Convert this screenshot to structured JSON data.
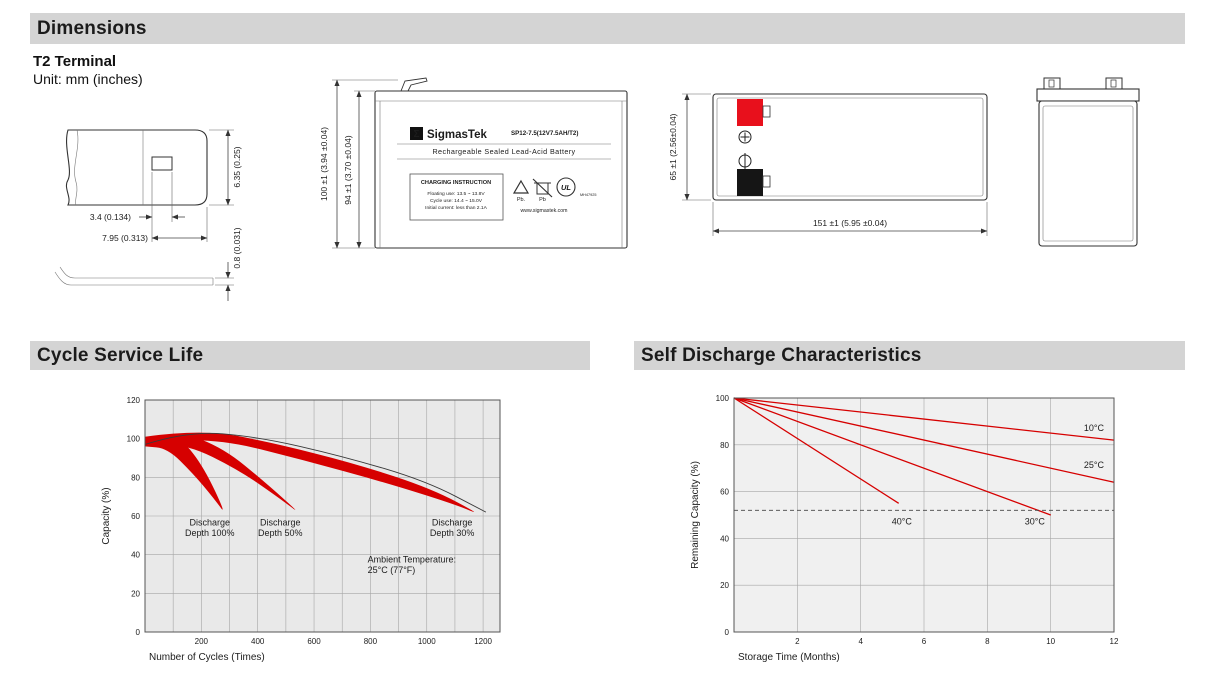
{
  "page": {
    "dimensions_header": "Dimensions",
    "terminal_type": "T2 Terminal",
    "unit_note": "Unit: mm (inches)",
    "cycle_section_title": "Cycle Service Life",
    "self_discharge_section_title": "Self Discharge Characteristics"
  },
  "terminal_drawing": {
    "dim_hole_width": "3.4 (0.134)",
    "dim_hole_offset": "7.95 (0.313)",
    "dim_tab_width": "6.35 (0.25)",
    "dim_thickness": "0.8 (0.031)"
  },
  "front_view": {
    "dim_height_total": "100 ±1 (3.94 ±0.04)",
    "dim_height_body": "94 ±1 (3.70 ±0.04)",
    "brand_sigma": "Σ",
    "brand_name": "SigmasTek",
    "model": "SP12-7.5(12V7.5AH/T2)",
    "battery_type": "Rechargeable Sealed Lead-Acid Battery",
    "charging_title": "CHARGING INSTRUCTION",
    "charging_line1": "Floating use: 13.5 ~ 13.8V",
    "charging_line2": "Cycle use: 14.4 ~ 15.0V",
    "charging_line3": "Initial current: less than 2.1A",
    "recycle_label": "Pb.",
    "bin_label": "Pb",
    "ul_mark": "UL",
    "ul_file": "MH47925",
    "website": "www.sigmastek.com"
  },
  "side_view": {
    "dim_height": "65 ±1 (2.56±0.04)",
    "dim_length": "151 ±1 (5.95 ±0.04)"
  },
  "colors": {
    "accent_red": "#d60000",
    "terminal_red": "#e8101c",
    "terminal_black": "#151515",
    "section_header_bg": "#d4d4d4"
  },
  "chart_data": [
    {
      "id": "chart-cycle-life",
      "type": "area",
      "title": "Cycle Service Life",
      "xlabel": "Number of Cycles (Times)",
      "ylabel": "Capacity (%)",
      "xlim": [
        0,
        1260
      ],
      "ylim": [
        0,
        120
      ],
      "xticks": [
        200,
        400,
        600,
        800,
        1000,
        1200
      ],
      "yticks": [
        0,
        20,
        40,
        60,
        80,
        100,
        120
      ],
      "xgrid_step": 100,
      "ygrid_step": 20,
      "plot_bg": "#e9e9e9",
      "grid_color": "#a6a6a6",
      "border_color": "#555555",
      "legend": "none",
      "grid": true,
      "margins": {
        "l": 50,
        "r": 15,
        "t": 12,
        "b": 48
      },
      "bands": [
        {
          "name": "band-discharge-depth-100",
          "fill": "#d60000",
          "upper": [
            [
              0,
              99
            ],
            [
              60,
              103
            ],
            [
              130,
              100
            ],
            [
              210,
              85
            ],
            [
              290,
              60
            ]
          ],
          "lower": [
            [
              0,
              96
            ],
            [
              80,
              95
            ],
            [
              170,
              82
            ],
            [
              245,
              69
            ],
            [
              290,
              60
            ]
          ]
        },
        {
          "name": "band-discharge-depth-50",
          "fill": "#d60000",
          "upper": [
            [
              0,
              100
            ],
            [
              120,
              104
            ],
            [
              280,
              95
            ],
            [
              430,
              77
            ],
            [
              560,
              60
            ]
          ],
          "lower": [
            [
              0,
              97
            ],
            [
              150,
              97
            ],
            [
              330,
              84
            ],
            [
              470,
              70
            ],
            [
              560,
              60
            ]
          ]
        },
        {
          "name": "band-discharge-depth-30",
          "fill": "#d60000",
          "upper": [
            [
              0,
              101
            ],
            [
              200,
              105
            ],
            [
              450,
              98
            ],
            [
              750,
              87
            ],
            [
              1020,
              74
            ],
            [
              1200,
              60
            ]
          ],
          "lower": [
            [
              0,
              98
            ],
            [
              260,
              100
            ],
            [
              560,
              89
            ],
            [
              860,
              77
            ],
            [
              1100,
              66
            ],
            [
              1200,
              60
            ]
          ]
        }
      ],
      "lines": [
        {
          "name": "envelope-curve",
          "color": "#3a3a3a",
          "width": 0.9,
          "points": [
            [
              0,
              97
            ],
            [
              150,
              104
            ],
            [
              400,
              101
            ],
            [
              700,
              91
            ],
            [
              1000,
              78
            ],
            [
              1210,
              62
            ]
          ]
        }
      ],
      "annotations": [
        {
          "x": 230,
          "y": 55,
          "anchor": "middle",
          "lines": [
            "Discharge",
            "Depth 100%"
          ]
        },
        {
          "x": 480,
          "y": 55,
          "anchor": "middle",
          "lines": [
            "Discharge",
            "Depth 50%"
          ]
        },
        {
          "x": 1090,
          "y": 55,
          "anchor": "middle",
          "lines": [
            "Discharge",
            "Depth 30%"
          ]
        },
        {
          "x": 790,
          "y": 36,
          "anchor": "start",
          "lines": [
            "Ambient Temperature:",
            "25°C (77°F)"
          ]
        }
      ]
    },
    {
      "id": "chart-self-discharge",
      "type": "line",
      "title": "Self Discharge Characteristics",
      "xlabel": "Storage Time (Months)",
      "ylabel": "Remaining Capacity (%)",
      "xlim": [
        0,
        12
      ],
      "ylim": [
        0,
        100
      ],
      "xticks": [
        2,
        4,
        6,
        8,
        10,
        12
      ],
      "yticks": [
        0,
        20,
        40,
        60,
        80,
        100
      ],
      "xgrid_step": 2,
      "ygrid_step": 20,
      "plot_bg": "#f0f0f0",
      "grid_color": "#a6a6a6",
      "border_color": "#555555",
      "legend": "none",
      "grid": true,
      "margins": {
        "l": 52,
        "r": 18,
        "t": 10,
        "b": 48
      },
      "bands": [],
      "lines": [
        {
          "name": "line-10c",
          "color": "#d60000",
          "width": 1.3,
          "points": [
            [
              0,
              100
            ],
            [
              12,
              82
            ]
          ]
        },
        {
          "name": "line-25c",
          "color": "#d60000",
          "width": 1.3,
          "points": [
            [
              0,
              100
            ],
            [
              12,
              64
            ]
          ]
        },
        {
          "name": "line-30c",
          "color": "#d60000",
          "width": 1.3,
          "points": [
            [
              0,
              100
            ],
            [
              10,
              50
            ]
          ]
        },
        {
          "name": "line-40c",
          "color": "#d60000",
          "width": 1.3,
          "points": [
            [
              0,
              100
            ],
            [
              5.2,
              55
            ]
          ]
        },
        {
          "name": "threshold-dashed",
          "color": "#444444",
          "width": 0.9,
          "dash": "4 3",
          "points": [
            [
              0,
              52
            ],
            [
              12,
              52
            ]
          ]
        }
      ],
      "annotations": [
        {
          "x": 11.05,
          "y": 86,
          "anchor": "start",
          "lines": [
            "10°C"
          ]
        },
        {
          "x": 11.05,
          "y": 70,
          "anchor": "start",
          "lines": [
            "25°C"
          ]
        },
        {
          "x": 9.5,
          "y": 46,
          "anchor": "middle",
          "lines": [
            "30°C"
          ]
        },
        {
          "x": 5.3,
          "y": 46,
          "anchor": "middle",
          "lines": [
            "40°C"
          ]
        }
      ]
    }
  ]
}
